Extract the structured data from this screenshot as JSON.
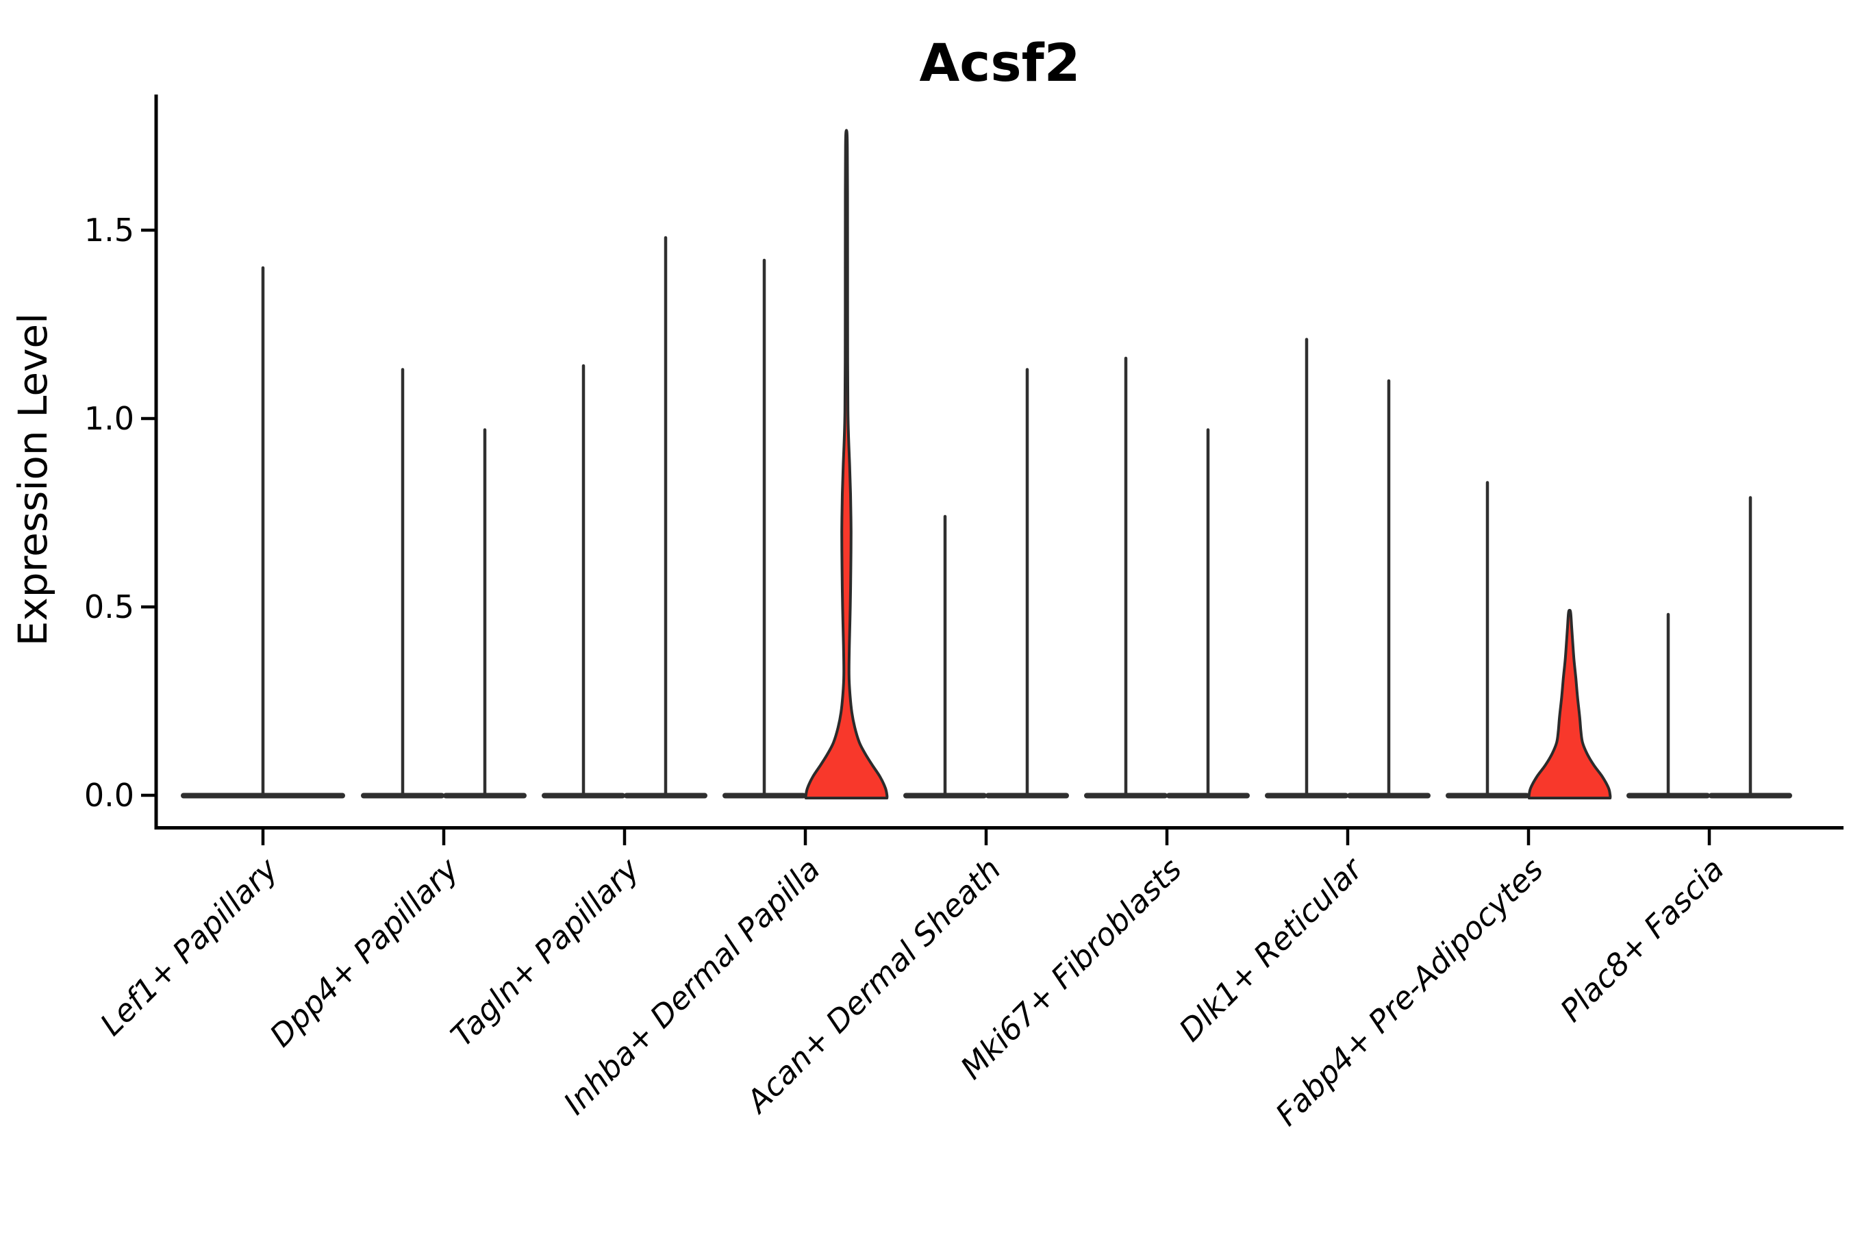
{
  "chart_data": {
    "type": "violin",
    "title": "Acsf2",
    "xlabel": "",
    "ylabel": "Expression Level",
    "yticks": [
      "0.0",
      "0.5",
      "1.0",
      "1.5"
    ],
    "ytick_values": [
      0.0,
      0.5,
      1.0,
      1.5
    ],
    "ylim": [
      0,
      1.86
    ],
    "grid": "off",
    "legend": "none",
    "colors": {
      "violin_dark": "#2f2f2f",
      "highlight_red": "#f8382b",
      "outline": "#2b2b2b",
      "text": "#000000",
      "background": "#ffffff"
    },
    "note": "Violin plot of Acsf2 expression; most violins collapse to a flat base at 0 with a thin spike to the max value; two red-highlighted violins show visible density",
    "categories": [
      {
        "label": "Lef1+ Papillary",
        "violins": [
          {
            "slot": "center",
            "max": 1.4,
            "highlighted": false
          }
        ]
      },
      {
        "label": "Dpp4+ Papillary",
        "violins": [
          {
            "slot": "left",
            "max": 1.13,
            "highlighted": false
          },
          {
            "slot": "right",
            "max": 0.97,
            "highlighted": false
          }
        ]
      },
      {
        "label": "Tagln+ Papillary",
        "violins": [
          {
            "slot": "left",
            "max": 1.14,
            "highlighted": false
          },
          {
            "slot": "right",
            "max": 1.48,
            "highlighted": false
          }
        ]
      },
      {
        "label": "Inhba+ Dermal Papilla",
        "violins": [
          {
            "slot": "left",
            "max": 1.42,
            "highlighted": false
          },
          {
            "slot": "right",
            "max": 1.76,
            "highlighted": true,
            "profile": [
              [
                0.0,
                0.97
              ],
              [
                0.02,
                0.93
              ],
              [
                0.05,
                0.8
              ],
              [
                0.08,
                0.62
              ],
              [
                0.11,
                0.45
              ],
              [
                0.14,
                0.31
              ],
              [
                0.18,
                0.2
              ],
              [
                0.22,
                0.13
              ],
              [
                0.27,
                0.083
              ],
              [
                0.32,
                0.062
              ],
              [
                0.4,
                0.07
              ],
              [
                0.5,
                0.092
              ],
              [
                0.6,
                0.105
              ],
              [
                0.7,
                0.111
              ],
              [
                0.8,
                0.098
              ],
              [
                0.88,
                0.075
              ],
              [
                0.95,
                0.051
              ],
              [
                1.02,
                0.036
              ],
              [
                1.15,
                0.03
              ],
              [
                1.4,
                0.028
              ],
              [
                1.6,
                0.026
              ],
              [
                1.72,
                0.022
              ],
              [
                1.76,
                0.012
              ]
            ]
          }
        ]
      },
      {
        "label": "Acan+ Dermal Sheath",
        "violins": [
          {
            "slot": "left",
            "max": 0.74,
            "highlighted": false
          },
          {
            "slot": "right",
            "max": 1.13,
            "highlighted": false
          }
        ]
      },
      {
        "label": "Mki67+ Fibroblasts",
        "violins": [
          {
            "slot": "left",
            "max": 1.16,
            "highlighted": false
          },
          {
            "slot": "right",
            "max": 0.97,
            "highlighted": false
          }
        ]
      },
      {
        "label": "Dlk1+ Reticular",
        "violins": [
          {
            "slot": "left",
            "max": 1.21,
            "highlighted": false
          },
          {
            "slot": "right",
            "max": 1.1,
            "highlighted": false
          }
        ]
      },
      {
        "label": "Fabp4+ Pre-Adipocytes",
        "violins": [
          {
            "slot": "left",
            "max": 0.83,
            "highlighted": false
          },
          {
            "slot": "right",
            "max": 0.49,
            "highlighted": true,
            "profile": [
              [
                0.0,
                0.97
              ],
              [
                0.02,
                0.93
              ],
              [
                0.05,
                0.78
              ],
              [
                0.08,
                0.58
              ],
              [
                0.11,
                0.42
              ],
              [
                0.14,
                0.31
              ],
              [
                0.17,
                0.27
              ],
              [
                0.21,
                0.24
              ],
              [
                0.26,
                0.19
              ],
              [
                0.31,
                0.15
              ],
              [
                0.36,
                0.105
              ],
              [
                0.41,
                0.072
              ],
              [
                0.45,
                0.048
              ],
              [
                0.48,
                0.03
              ],
              [
                0.49,
                0.015
              ]
            ]
          }
        ]
      },
      {
        "label": "Plac8+ Fascia",
        "violins": [
          {
            "slot": "left",
            "max": 0.48,
            "highlighted": false
          },
          {
            "slot": "right",
            "max": 0.79,
            "highlighted": false
          }
        ]
      }
    ]
  }
}
